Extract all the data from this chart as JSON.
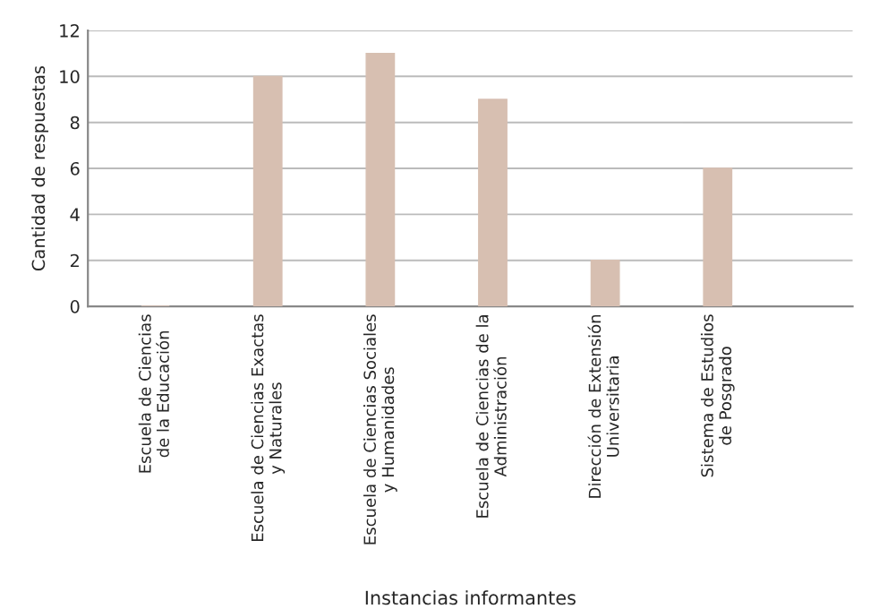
{
  "chart_data": {
    "type": "bar",
    "xlabel": "Instancias informantes",
    "ylabel": "Cantidad de respuestas",
    "categories": [
      "Escuela de Ciencias\nde la Educación",
      "Escuela de Ciencias Exactas\ny Naturales",
      "Escuela de Ciencias Sociales\ny Humanidades",
      "Escuela de Ciencias de la\nAdministración",
      "Dirección de Extensión\nUniversitaria",
      "Sistema de Estudios\nde Posgrado"
    ],
    "values": [
      0,
      10,
      11,
      9,
      2,
      6
    ],
    "color": "#d7bfb1",
    "ylim": [
      0,
      12
    ],
    "yticks": [
      0,
      2,
      4,
      6,
      8,
      10,
      12
    ],
    "grid": "y",
    "legend": false
  }
}
